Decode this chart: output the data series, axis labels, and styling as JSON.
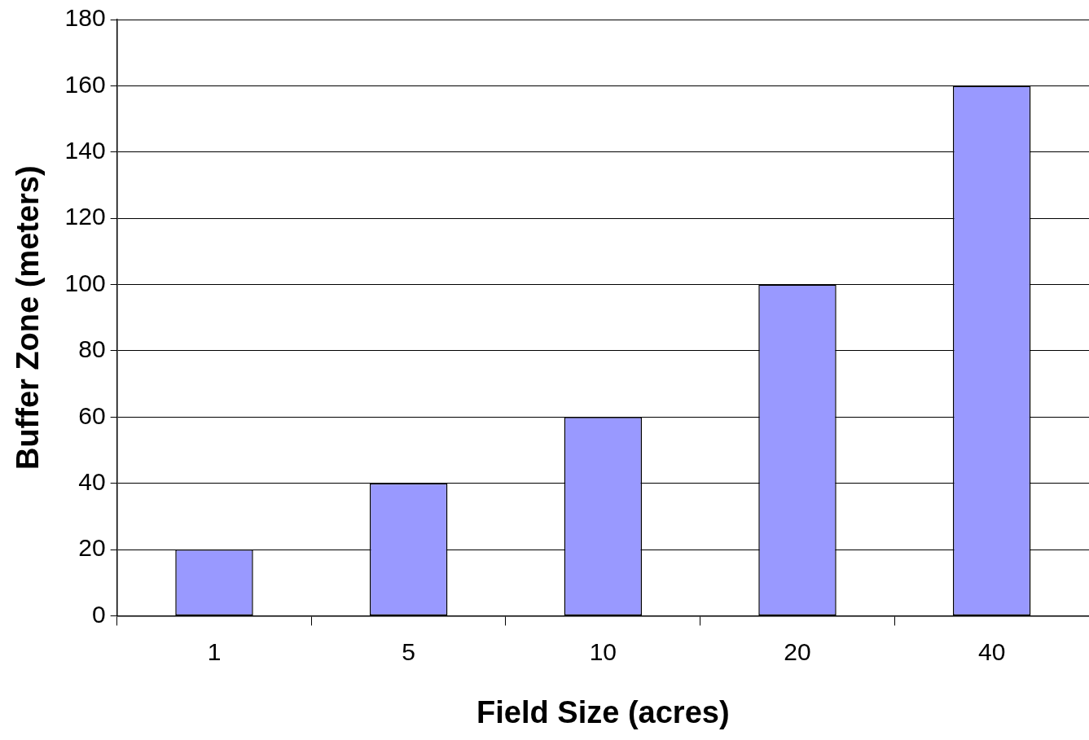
{
  "chart_data": {
    "type": "bar",
    "xlabel": "Field Size (acres)",
    "ylabel": "Buffer Zone (meters)",
    "categories": [
      "1",
      "5",
      "10",
      "20",
      "40"
    ],
    "values": [
      20,
      40,
      60,
      100,
      160
    ],
    "color": "#9999ff",
    "ylim": [
      0,
      180
    ],
    "yticks": [
      0,
      20,
      40,
      60,
      80,
      100,
      120,
      140,
      160,
      180
    ],
    "grid": "y"
  }
}
